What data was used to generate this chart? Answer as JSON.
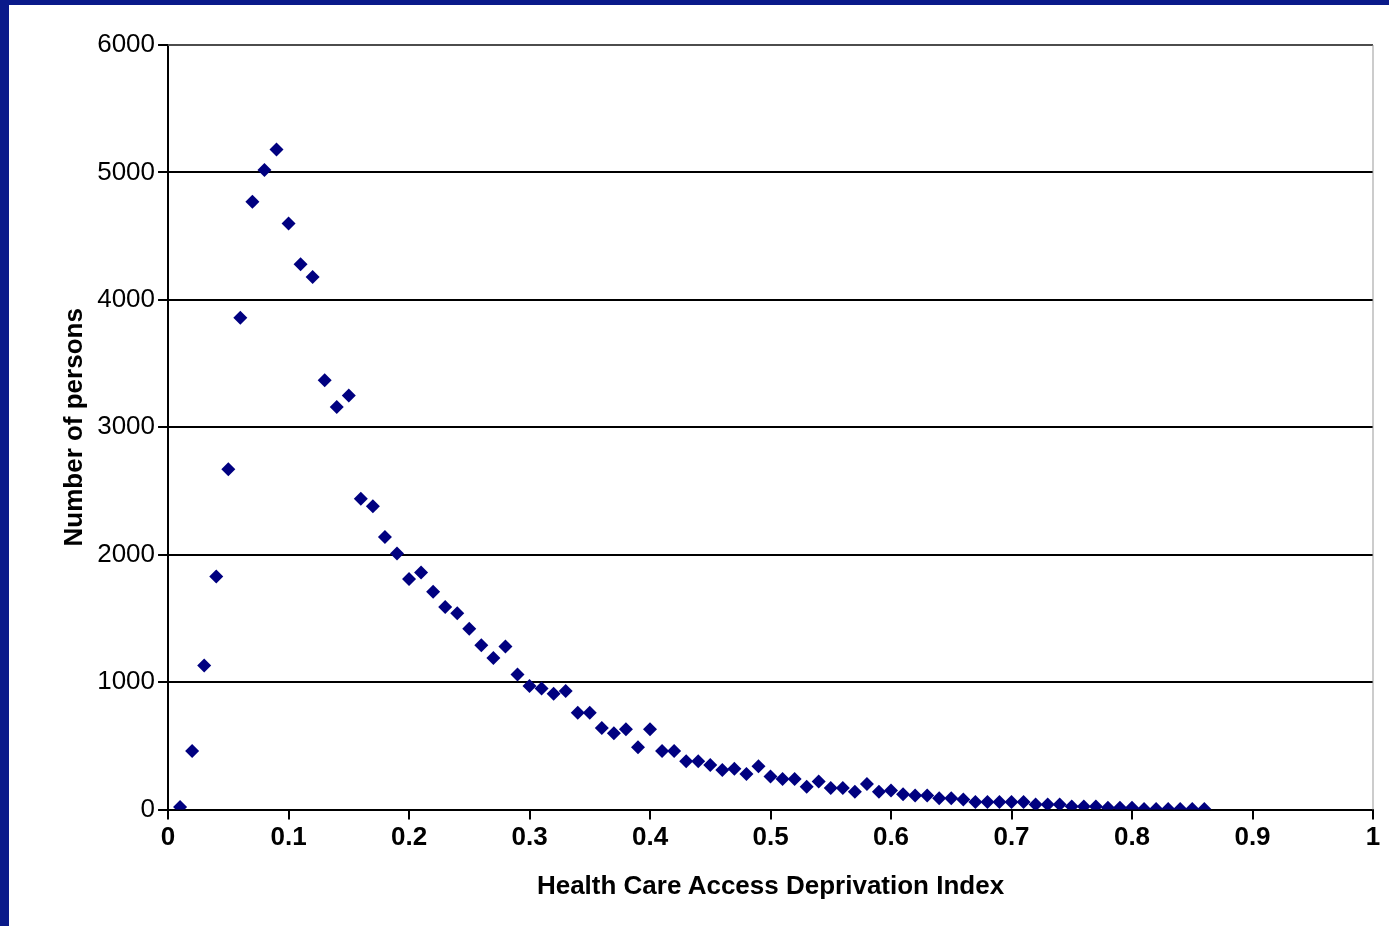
{
  "chart_data": {
    "type": "scatter",
    "xlabel": "Health Care Access Deprivation Index",
    "ylabel": "Number of persons",
    "x": [
      0.01,
      0.02,
      0.03,
      0.04,
      0.05,
      0.06,
      0.07,
      0.08,
      0.09,
      0.1,
      0.11,
      0.12,
      0.13,
      0.14,
      0.15,
      0.16,
      0.17,
      0.18,
      0.19,
      0.2,
      0.21,
      0.22,
      0.23,
      0.24,
      0.25,
      0.26,
      0.27,
      0.28,
      0.29,
      0.3,
      0.31,
      0.32,
      0.33,
      0.34,
      0.35,
      0.36,
      0.37,
      0.38,
      0.39,
      0.4,
      0.41,
      0.42,
      0.43,
      0.44,
      0.45,
      0.46,
      0.47,
      0.48,
      0.49,
      0.5,
      0.51,
      0.52,
      0.53,
      0.54,
      0.55,
      0.56,
      0.57,
      0.58,
      0.59,
      0.6,
      0.61,
      0.62,
      0.63,
      0.64,
      0.65,
      0.66,
      0.67,
      0.68,
      0.69,
      0.7,
      0.71,
      0.72,
      0.73,
      0.74,
      0.75,
      0.76,
      0.77,
      0.78,
      0.79,
      0.8,
      0.81,
      0.82,
      0.83,
      0.84,
      0.85,
      0.86
    ],
    "series": [
      {
        "color": "#000080",
        "values": [
          20,
          460,
          1130,
          1830,
          2670,
          3860,
          4770,
          5020,
          5180,
          4600,
          4280,
          4180,
          3370,
          3160,
          3250,
          2440,
          2380,
          2140,
          2010,
          1810,
          1860,
          1710,
          1590,
          1540,
          1420,
          1290,
          1190,
          1280,
          1060,
          970,
          950,
          910,
          930,
          760,
          760,
          640,
          600,
          630,
          490,
          630,
          460,
          460,
          380,
          380,
          350,
          310,
          320,
          280,
          340,
          260,
          240,
          240,
          180,
          220,
          170,
          170,
          140,
          200,
          140,
          150,
          120,
          110,
          110,
          90,
          90,
          80,
          60,
          60,
          60,
          60,
          60,
          40,
          40,
          40,
          25,
          25,
          25,
          15,
          15,
          15,
          5,
          5,
          5,
          5,
          5,
          5
        ]
      }
    ],
    "xlim": [
      0,
      1
    ],
    "xticks": [
      0,
      0.1,
      0.2,
      0.3,
      0.4,
      0.5,
      0.6,
      0.7,
      0.8,
      0.9,
      1
    ],
    "ylim": [
      0,
      6000
    ],
    "yticks": [
      0,
      1000,
      2000,
      3000,
      4000,
      5000,
      6000
    ],
    "grid": "y",
    "legend": false,
    "marker": "diamond"
  }
}
